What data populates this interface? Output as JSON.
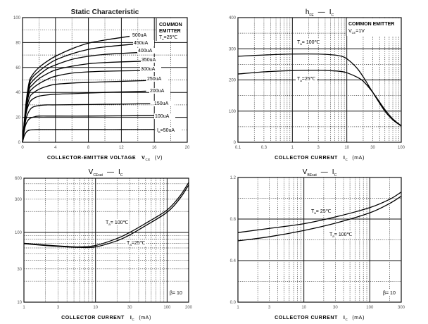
{
  "chart_data": [
    {
      "type": "line",
      "title": "Static Characteristic",
      "xlabel": "COLLECTOR-EMITTER VOLTAGE",
      "xlabel_symbol": "V",
      "xlabel_sub": "CE",
      "xlabel_unit": "(V)",
      "ylabel": "",
      "xscale": "linear",
      "yscale": "linear",
      "xlim": [
        0,
        20
      ],
      "ylim": [
        0,
        100
      ],
      "xticks": [
        0,
        4,
        8,
        12,
        16,
        20
      ],
      "xtick_labels": [
        "0",
        "4",
        "8",
        "12",
        "16",
        "20"
      ],
      "yticks": [
        0,
        20,
        40,
        60,
        80,
        100
      ],
      "ytick_labels": [
        "0",
        "20",
        "40",
        "60",
        "80",
        "100"
      ],
      "grid": true,
      "annotation": {
        "line1": "COMMON",
        "line2": "EMITTER",
        "line3_sym": "T",
        "line3_sub": "a",
        "line3_val": "=25℃"
      },
      "series": [
        {
          "name": "500uA",
          "label": "500uA",
          "x": [
            0,
            0.4,
            0.8,
            1.2,
            2,
            3,
            4,
            6,
            8,
            10,
            13
          ],
          "y": [
            0,
            30,
            48,
            54,
            60,
            65,
            69,
            75,
            79.5,
            82,
            85
          ]
        },
        {
          "name": "450uA",
          "label": "450uA",
          "x": [
            0,
            0.4,
            0.8,
            1.2,
            2,
            3,
            4,
            6,
            8,
            10,
            14
          ],
          "y": [
            0,
            28,
            46,
            52,
            57,
            62,
            66,
            71,
            74.5,
            76.5,
            79
          ]
        },
        {
          "name": "400uA",
          "label": "400uA",
          "x": [
            0,
            0.4,
            0.8,
            1.2,
            2,
            3,
            4,
            6,
            8,
            10,
            14
          ],
          "y": [
            0,
            27,
            44,
            49,
            54,
            59,
            62,
            66.5,
            69,
            70.5,
            72
          ]
        },
        {
          "name": "350uA",
          "label": "350uA",
          "x": [
            0,
            0.4,
            0.8,
            1.2,
            2,
            3,
            4,
            6,
            8,
            10,
            14.5
          ],
          "y": [
            0,
            26,
            42,
            46,
            51,
            55,
            58,
            61,
            63,
            64,
            65
          ]
        },
        {
          "name": "300uA",
          "label": "300uA",
          "x": [
            0,
            0.4,
            0.8,
            1.2,
            2,
            3,
            4,
            6,
            8,
            10,
            14.5
          ],
          "y": [
            0,
            25,
            39,
            43,
            47,
            50.5,
            53,
            55.5,
            56.5,
            57,
            57.5
          ]
        },
        {
          "name": "250uA",
          "label": "250uA",
          "x": [
            0,
            0.4,
            0.8,
            1.2,
            2,
            3,
            4,
            6,
            8,
            10,
            15
          ],
          "y": [
            0,
            23,
            35,
            39,
            42.5,
            45,
            46.5,
            47.5,
            48,
            48.5,
            49.5
          ]
        },
        {
          "name": "200uA",
          "label": "200uA",
          "x": [
            0,
            0.4,
            0.8,
            1.2,
            2,
            3,
            4,
            6,
            8,
            10,
            15
          ],
          "y": [
            0,
            22,
            31,
            34.5,
            37,
            38,
            38.5,
            39,
            39.5,
            40,
            41
          ]
        },
        {
          "name": "150uA",
          "label": "150uA",
          "x": [
            0,
            0.4,
            0.8,
            1.2,
            2,
            3,
            4,
            8,
            12,
            15.5
          ],
          "y": [
            0,
            18,
            25,
            28,
            29.5,
            30,
            30,
            30.3,
            30.6,
            31
          ]
        },
        {
          "name": "100uA",
          "label": "100uA",
          "x": [
            0,
            0.3,
            0.6,
            1,
            1.5,
            2,
            4,
            8,
            12,
            16
          ],
          "y": [
            0,
            12,
            17,
            19.5,
            20.5,
            21,
            21,
            21,
            21.2,
            21.5
          ]
        },
        {
          "name": "50uA",
          "label_sym": "I",
          "label_sub": "B",
          "label": "=50uA",
          "x": [
            0,
            0.2,
            0.5,
            0.8,
            1.2,
            2,
            4,
            8,
            12,
            16
          ],
          "y": [
            0,
            5,
            8.5,
            9.7,
            10,
            10.2,
            10.2,
            10.2,
            10.2,
            10.3
          ]
        }
      ]
    },
    {
      "type": "line",
      "title_sym": "h",
      "title_sub": "FE",
      "title_dash": "—",
      "title_sym2": "I",
      "title_sub2": "C",
      "xlabel": "COLLECTOR CURRENT",
      "xlabel_symbol": "I",
      "xlabel_sub": "C",
      "xlabel_unit": "(mA)",
      "xscale": "log",
      "yscale": "linear",
      "xlim": [
        0.1,
        100
      ],
      "ylim": [
        0,
        400
      ],
      "xticks": [
        0.1,
        0.3,
        1,
        3,
        10,
        30,
        100
      ],
      "xtick_labels": [
        "0.1",
        "0.3",
        "1",
        "3",
        "10",
        "30",
        "100"
      ],
      "yticks": [
        0,
        100,
        200,
        300,
        400
      ],
      "ytick_labels": [
        "0",
        "100",
        "200",
        "300",
        "400"
      ],
      "grid": true,
      "annotation": {
        "line1": "COMMON EMITTER",
        "line2_sym": "V",
        "line2_sub": "CE",
        "line2_val": "=1V"
      },
      "series": [
        {
          "name": "Ta=100℃",
          "label_sym": "T",
          "label_sub": "a",
          "label_val": "= 100℃",
          "x": [
            0.1,
            0.3,
            1,
            3,
            6,
            8,
            10,
            15,
            20,
            30,
            50,
            70,
            100
          ],
          "y": [
            276,
            280,
            283,
            283,
            280,
            276,
            268,
            240,
            210,
            160,
            100,
            72,
            52
          ]
        },
        {
          "name": "Ta=25℃",
          "label_sym": "T",
          "label_sub": "a",
          "label_val": "=25℃",
          "x": [
            0.1,
            0.3,
            1,
            3,
            6,
            8,
            10,
            15,
            20,
            30,
            50,
            70,
            100
          ],
          "y": [
            219,
            226,
            230,
            231,
            229,
            227,
            223,
            210,
            196,
            160,
            105,
            75,
            53
          ]
        }
      ]
    },
    {
      "type": "line",
      "title_sym": "V",
      "title_sub": "CEsat",
      "title_dash": "—",
      "title_sym2": "I",
      "title_sub2": "C",
      "xlabel": "COLLECTOR CURRENT",
      "xlabel_symbol": "I",
      "xlabel_sub": "C",
      "xlabel_unit": "(mA)",
      "xscale": "log",
      "yscale": "log",
      "xlim": [
        1,
        200
      ],
      "ylim": [
        10,
        600
      ],
      "xticks": [
        1,
        3,
        10,
        30,
        100,
        200
      ],
      "xtick_labels": [
        "1",
        "3",
        "10",
        "30",
        "100",
        "200"
      ],
      "yticks": [
        10,
        30,
        100,
        300,
        600
      ],
      "ytick_labels": [
        "10",
        "30",
        "100",
        "300",
        "600"
      ],
      "grid": true,
      "annotation": {
        "text": "β= 10"
      },
      "series": [
        {
          "name": "Ta=100℃",
          "label_sym": "T",
          "label_sub": "a",
          "label_val": "= 100℃",
          "x": [
            1,
            2,
            4,
            6,
            10,
            20,
            30,
            50,
            100,
            150,
            200
          ],
          "y": [
            70,
            66,
            63,
            62,
            65,
            82,
            100,
            135,
            210,
            330,
            520
          ]
        },
        {
          "name": "Ta=25℃",
          "label_sym": "T",
          "label_sub": "a",
          "label_val": "=25℃",
          "x": [
            1,
            2,
            4,
            6,
            10,
            20,
            30,
            50,
            100,
            150,
            200
          ],
          "y": [
            69,
            65,
            62,
            61,
            62,
            76,
            92,
            125,
            195,
            305,
            480
          ]
        }
      ]
    },
    {
      "type": "line",
      "title_sym": "V",
      "title_sub": "BEsat",
      "title_dash": "—",
      "title_sym2": "I",
      "title_sub2": "C",
      "xlabel": "COLLECTOR CURRENT",
      "xlabel_symbol": "I",
      "xlabel_sub": "C",
      "xlabel_unit": "(mA)",
      "xscale": "log",
      "yscale": "linear",
      "xlim": [
        1,
        300
      ],
      "ylim": [
        0,
        1.2
      ],
      "xticks": [
        1,
        3,
        10,
        30,
        100,
        300
      ],
      "xtick_labels": [
        "1",
        "3",
        "10",
        "30",
        "100",
        "300"
      ],
      "yticks": [
        0,
        0.4,
        0.8,
        1.2
      ],
      "ytick_labels": [
        "0.0",
        "0.4",
        "0.8",
        "1.2"
      ],
      "grid": true,
      "annotation": {
        "text": "β= 10"
      },
      "series": [
        {
          "name": "Ta=25℃",
          "label_sym": "T",
          "label_sub": "a",
          "label_val": "= 25℃",
          "x": [
            1,
            3,
            10,
            30,
            100,
            200,
            300
          ],
          "y": [
            0.67,
            0.71,
            0.755,
            0.82,
            0.91,
            0.99,
            1.06
          ]
        },
        {
          "name": "Ta=100℃",
          "label_sym": "T",
          "label_sub": "a",
          "label_val": "= 100℃",
          "x": [
            1,
            3,
            10,
            30,
            100,
            200,
            300
          ],
          "y": [
            0.59,
            0.63,
            0.69,
            0.76,
            0.86,
            0.95,
            1.02
          ]
        }
      ]
    }
  ]
}
